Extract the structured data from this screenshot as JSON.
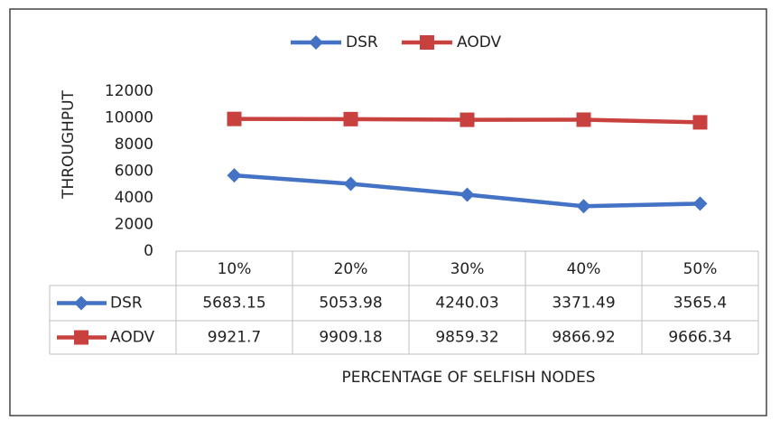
{
  "chart_data": {
    "type": "line",
    "xlabel": "PERCENTAGE OF SELFISH NODES",
    "ylabel": "THROUGHPUT",
    "categories": [
      "10%",
      "20%",
      "30%",
      "40%",
      "50%"
    ],
    "series": [
      {
        "name": "DSR",
        "color": "#4472c4",
        "marker": "diamond",
        "values": [
          5683.15,
          5053.98,
          4240.03,
          3371.49,
          3565.4
        ]
      },
      {
        "name": "AODV",
        "color": "#c9413e",
        "marker": "square",
        "values": [
          9921.7,
          9909.18,
          9859.32,
          9866.92,
          9666.34
        ]
      }
    ],
    "ylim": [
      0,
      12000
    ],
    "yticks": [
      0,
      2000,
      4000,
      6000,
      8000,
      10000,
      12000
    ],
    "grid": false,
    "legend": "top",
    "data_table": true
  }
}
